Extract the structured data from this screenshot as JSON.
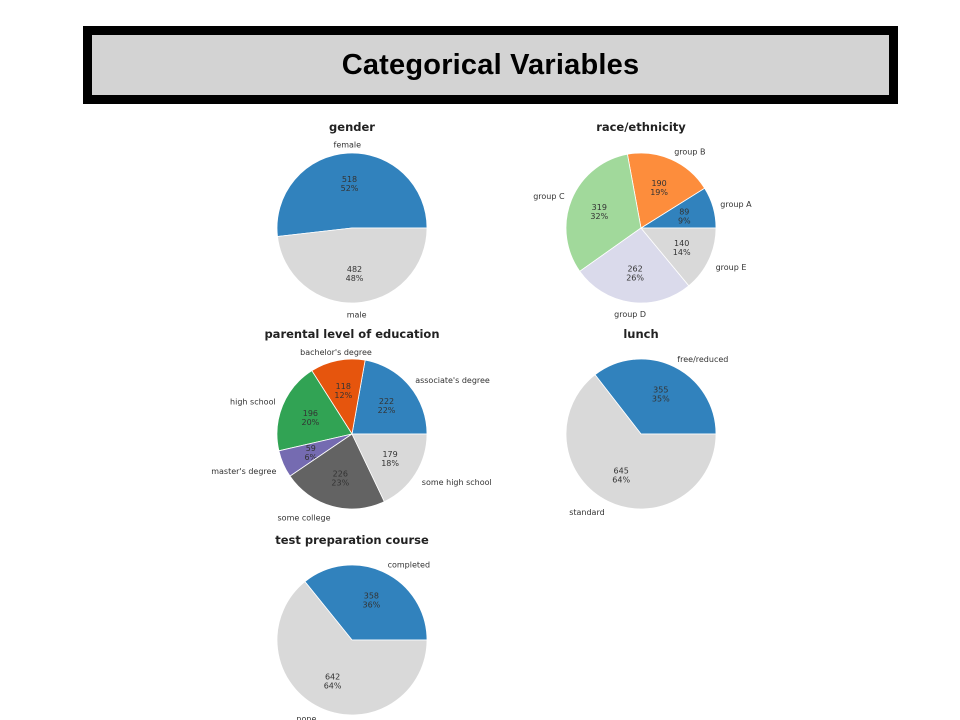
{
  "header": {
    "title": "Categorical Variables"
  },
  "colors": {
    "blue": "#3182bd",
    "light_gray": "#d9d9d9",
    "orange": "#fd8d3c",
    "light_green": "#a1d99b",
    "lavender": "#dadaeb",
    "dark_orange": "#e6550d",
    "green": "#31a354",
    "purple": "#756bb1",
    "dark_gray": "#636363"
  },
  "chart_data": [
    {
      "type": "pie",
      "title": "gender",
      "categories": [
        "female",
        "male"
      ],
      "values": [
        518,
        482
      ],
      "percents": [
        "52%",
        "48%"
      ],
      "colors": [
        "#3182bd",
        "#d9d9d9"
      ]
    },
    {
      "type": "pie",
      "title": "race/ethnicity",
      "categories": [
        "group A",
        "group B",
        "group C",
        "group D",
        "group E"
      ],
      "values": [
        89,
        190,
        319,
        262,
        140
      ],
      "percents": [
        "9%",
        "19%",
        "32%",
        "26%",
        "14%"
      ],
      "colors": [
        "#3182bd",
        "#fd8d3c",
        "#a1d99b",
        "#dadaeb",
        "#d9d9d9"
      ]
    },
    {
      "type": "pie",
      "title": "parental level of education",
      "categories": [
        "associate's degree",
        "bachelor's degree",
        "high school",
        "master's degree",
        "some college",
        "some high school"
      ],
      "values": [
        222,
        118,
        196,
        59,
        226,
        179
      ],
      "percents": [
        "22%",
        "12%",
        "20%",
        "6%",
        "23%",
        "18%"
      ],
      "colors": [
        "#3182bd",
        "#e6550d",
        "#31a354",
        "#756bb1",
        "#636363",
        "#d9d9d9"
      ]
    },
    {
      "type": "pie",
      "title": "lunch",
      "categories": [
        "free/reduced",
        "standard"
      ],
      "values": [
        355,
        645
      ],
      "percents": [
        "35%",
        "64%"
      ],
      "colors": [
        "#3182bd",
        "#d9d9d9"
      ]
    },
    {
      "type": "pie",
      "title": "test preparation course",
      "categories": [
        "completed",
        "none"
      ],
      "values": [
        358,
        642
      ],
      "percents": [
        "36%",
        "64%"
      ],
      "colors": [
        "#3182bd",
        "#d9d9d9"
      ]
    }
  ]
}
